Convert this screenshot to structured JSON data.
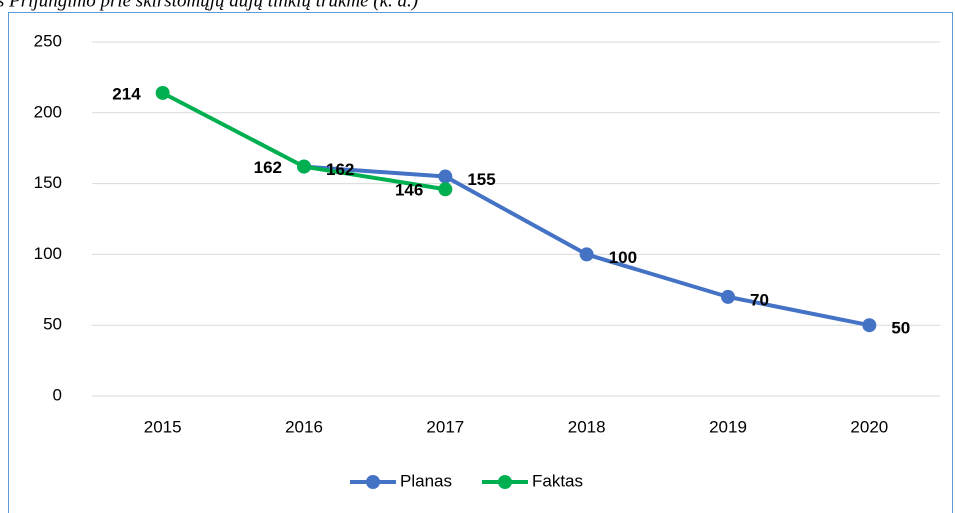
{
  "chart_data": {
    "type": "line",
    "title": "s Prijungimo prie skirstomųjų dujų tinklų trukmė (k. d.)",
    "categories": [
      "2015",
      "2016",
      "2017",
      "2018",
      "2019",
      "2020"
    ],
    "series": [
      {
        "name": "Planas",
        "color": "#4472c4",
        "values": [
          null,
          162,
          155,
          100,
          70,
          50
        ]
      },
      {
        "name": "Faktas",
        "color": "#00b050",
        "values": [
          214,
          162,
          146,
          null,
          null,
          null
        ]
      }
    ],
    "ylim": [
      0,
      250
    ],
    "yticks": [
      0,
      50,
      100,
      150,
      200,
      250
    ],
    "grid": true,
    "legend": "bottom"
  }
}
